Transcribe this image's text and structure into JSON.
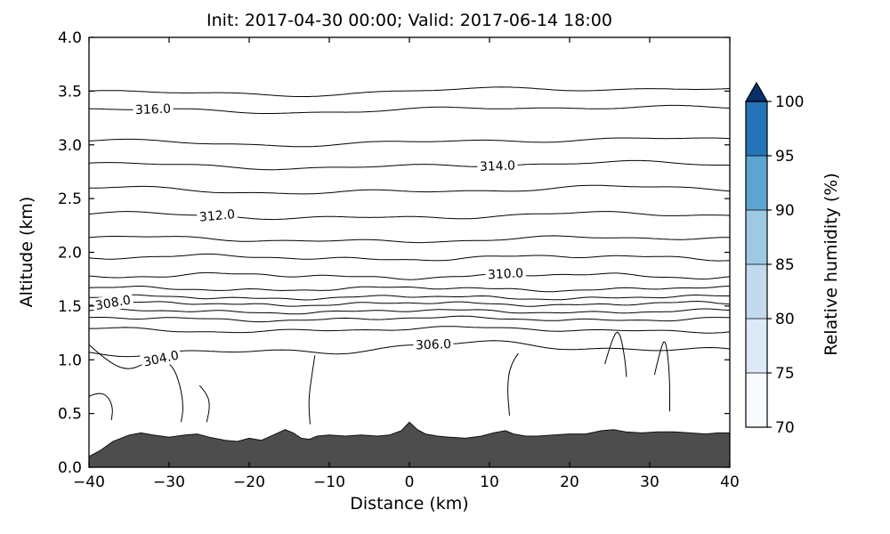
{
  "chart_data": {
    "type": "contour",
    "title": "Init: 2017-04-30 00:00; Valid: 2017-06-14 18:00",
    "xlabel": "Distance (km)",
    "ylabel": "Altitude (km)",
    "xlim": [
      -40,
      40
    ],
    "ylim": [
      0.0,
      4.0
    ],
    "xticks": [
      "−40",
      "−30",
      "−20",
      "−10",
      "0",
      "10",
      "20",
      "30",
      "40"
    ],
    "xtick_values": [
      -40,
      -30,
      -20,
      -10,
      0,
      10,
      20,
      30,
      40
    ],
    "yticks": [
      "0.0",
      "0.5",
      "1.0",
      "1.5",
      "2.0",
      "2.5",
      "3.0",
      "3.5",
      "4.0"
    ],
    "ytick_values": [
      0.0,
      0.5,
      1.0,
      1.5,
      2.0,
      2.5,
      3.0,
      3.5,
      4.0
    ],
    "grid": false,
    "legend": "none",
    "contour_line_color": "#000000",
    "labeled_levels": [
      304.0,
      306.0,
      308.0,
      310.0,
      312.0,
      314.0,
      316.0
    ],
    "contours": [
      {
        "level": 317.0,
        "alt": 3.5,
        "amp": 0.055,
        "f": 0.8,
        "seed": 11
      },
      {
        "level": 316.0,
        "alt": 3.33,
        "amp": 0.045,
        "f": 0.9,
        "seed": 22,
        "label": "316.0",
        "label_x": -32,
        "label_rot": -2
      },
      {
        "level": 315.0,
        "alt": 3.03,
        "amp": 0.05,
        "f": 0.9,
        "seed": 33
      },
      {
        "level": 314.0,
        "alt": 2.81,
        "amp": 0.045,
        "f": 1.0,
        "seed": 44,
        "label": "314.0",
        "label_x": 11,
        "label_rot": -2
      },
      {
        "level": 313.0,
        "alt": 2.58,
        "amp": 0.05,
        "f": 1.0,
        "seed": 55
      },
      {
        "level": 312.0,
        "alt": 2.34,
        "amp": 0.045,
        "f": 1.1,
        "seed": 66,
        "label": "312.0",
        "label_x": -24,
        "label_rot": -5
      },
      {
        "level": 311.0,
        "alt": 2.12,
        "amp": 0.04,
        "f": 1.2,
        "seed": 77
      },
      {
        "level": 310.5,
        "alt": 1.95,
        "amp": 0.035,
        "f": 1.6,
        "seed": 88
      },
      {
        "level": 310.0,
        "alt": 1.78,
        "amp": 0.035,
        "f": 1.8,
        "seed": 99,
        "label": "310.0",
        "label_x": 12,
        "label_rot": -3
      },
      {
        "level": 309.5,
        "alt": 1.66,
        "amp": 0.028,
        "f": 2.0,
        "seed": 12
      },
      {
        "level": 309.0,
        "alt": 1.58,
        "amp": 0.026,
        "f": 2.1,
        "seed": 23
      },
      {
        "level": 308.0,
        "alt": 1.52,
        "amp": 0.026,
        "f": 2.2,
        "seed": 34,
        "label": "308.0",
        "label_x": -37,
        "label_rot": -10
      },
      {
        "level": 307.5,
        "alt": 1.45,
        "amp": 0.026,
        "f": 2.0,
        "seed": 45
      },
      {
        "level": 307.0,
        "alt": 1.38,
        "amp": 0.028,
        "f": 1.8,
        "seed": 56
      },
      {
        "level": 306.5,
        "alt": 1.28,
        "amp": 0.035,
        "f": 1.4,
        "seed": 67
      },
      {
        "level": 306.0,
        "alt": 1.1,
        "amp": 0.085,
        "f": 1.0,
        "seed": 78,
        "label": "306.0",
        "label_x": 3,
        "label_rot": -2
      }
    ],
    "open_contours": [
      {
        "level": 304.0,
        "pts": [
          [
            -40,
            1.14
          ],
          [
            -37.5,
            0.97
          ],
          [
            -35,
            0.9
          ],
          [
            -33,
            0.97
          ],
          [
            -31,
            1.01
          ],
          [
            -29.5,
            0.94
          ],
          [
            -28.6,
            0.76
          ],
          [
            -28.2,
            0.56
          ],
          [
            -28.5,
            0.42
          ]
        ],
        "label": "304.0",
        "label_at": [
          -31,
          1.01
        ],
        "label_rot": -12
      }
    ],
    "segments": [
      {
        "pts": [
          [
            -40,
            0.66
          ],
          [
            -38.8,
            0.7
          ],
          [
            -37.6,
            0.66
          ],
          [
            -37.0,
            0.55
          ],
          [
            -37.2,
            0.44
          ]
        ]
      },
      {
        "pts": [
          [
            -26.2,
            0.76
          ],
          [
            -25.2,
            0.68
          ],
          [
            -24.9,
            0.56
          ],
          [
            -25.3,
            0.42
          ]
        ]
      },
      {
        "pts": [
          [
            -11.8,
            1.04
          ],
          [
            -12.2,
            0.85
          ],
          [
            -12.6,
            0.62
          ],
          [
            -12.4,
            0.4
          ]
        ]
      },
      {
        "pts": [
          [
            13.6,
            1.06
          ],
          [
            12.6,
            0.96
          ],
          [
            12.2,
            0.74
          ],
          [
            12.5,
            0.48
          ]
        ]
      },
      {
        "pts": [
          [
            24.4,
            0.96
          ],
          [
            25.4,
            1.22
          ],
          [
            26.2,
            1.28
          ],
          [
            26.9,
            1.02
          ],
          [
            27.1,
            0.84
          ]
        ]
      },
      {
        "pts": [
          [
            30.6,
            0.86
          ],
          [
            31.4,
            1.12
          ],
          [
            32.0,
            1.2
          ],
          [
            32.5,
            0.86
          ],
          [
            32.5,
            0.52
          ]
        ]
      }
    ],
    "terrain": {
      "color": "#4d4d4d",
      "edge_color": "#111111",
      "profile": [
        [
          -40,
          0.1
        ],
        [
          -38.5,
          0.16
        ],
        [
          -37,
          0.24
        ],
        [
          -35,
          0.3
        ],
        [
          -33.5,
          0.32
        ],
        [
          -32,
          0.3
        ],
        [
          -30,
          0.28
        ],
        [
          -28,
          0.3
        ],
        [
          -26.5,
          0.31
        ],
        [
          -25,
          0.28
        ],
        [
          -23,
          0.25
        ],
        [
          -21.5,
          0.24
        ],
        [
          -20,
          0.27
        ],
        [
          -18.5,
          0.25
        ],
        [
          -17,
          0.3
        ],
        [
          -15.5,
          0.35
        ],
        [
          -14.5,
          0.32
        ],
        [
          -13.5,
          0.27
        ],
        [
          -12.5,
          0.26
        ],
        [
          -11.5,
          0.29
        ],
        [
          -10,
          0.3
        ],
        [
          -8,
          0.29
        ],
        [
          -6,
          0.3
        ],
        [
          -4,
          0.29
        ],
        [
          -2.5,
          0.3
        ],
        [
          -1,
          0.34
        ],
        [
          0,
          0.42
        ],
        [
          1,
          0.35
        ],
        [
          2,
          0.31
        ],
        [
          3.5,
          0.29
        ],
        [
          5,
          0.28
        ],
        [
          7,
          0.27
        ],
        [
          9,
          0.29
        ],
        [
          10.5,
          0.32
        ],
        [
          12,
          0.34
        ],
        [
          13,
          0.31
        ],
        [
          14.5,
          0.29
        ],
        [
          16,
          0.29
        ],
        [
          18,
          0.3
        ],
        [
          20,
          0.31
        ],
        [
          22,
          0.31
        ],
        [
          24,
          0.34
        ],
        [
          25.5,
          0.35
        ],
        [
          27,
          0.33
        ],
        [
          29,
          0.32
        ],
        [
          31,
          0.33
        ],
        [
          33,
          0.33
        ],
        [
          35,
          0.32
        ],
        [
          37,
          0.31
        ],
        [
          38.5,
          0.32
        ],
        [
          40,
          0.32
        ]
      ]
    },
    "colorbar": {
      "label": "Relative humidity (%)",
      "ticks": [
        "70",
        "75",
        "80",
        "85",
        "90",
        "95",
        "100"
      ],
      "tick_values": [
        70,
        75,
        80,
        85,
        90,
        95,
        100
      ],
      "range": [
        70,
        100
      ],
      "extend": "max",
      "segment_colors": [
        "#f7fbff",
        "#dce9f6",
        "#c3daee",
        "#9ec9e2",
        "#5da4d0",
        "#2474b7"
      ],
      "extend_color": "#08306b"
    }
  }
}
